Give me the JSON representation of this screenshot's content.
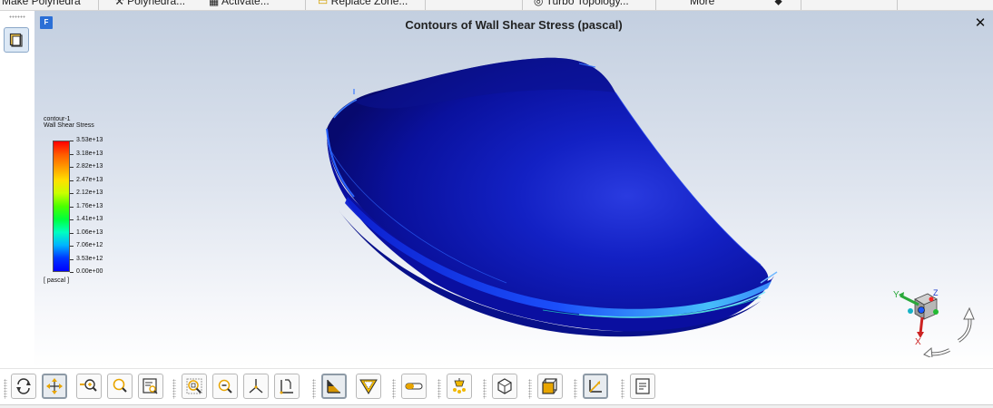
{
  "top_toolbar": {
    "items": [
      {
        "label": "Make Polyhedra",
        "icon": ""
      },
      {
        "label": "Polyhedra...",
        "icon": "wrench-icon"
      },
      {
        "label": "Activate...",
        "icon": "grid-icon"
      },
      {
        "label": "Replace Zone...",
        "icon": "folder-icon"
      },
      {
        "label": "Turbo Topology...",
        "icon": "turbo-icon"
      },
      {
        "label": "More",
        "icon": "dropdown-icon"
      }
    ]
  },
  "graphics_window": {
    "title": "Contours of Wall Shear Stress (pascal)",
    "badge": "F",
    "close_glyph": "✕"
  },
  "legend": {
    "contour_name": "contour-1",
    "variable": "Wall Shear Stress",
    "units": "[ pascal ]",
    "ticks": [
      "3.53e+13",
      "3.18e+13",
      "2.82e+13",
      "2.47e+13",
      "2.12e+13",
      "1.76e+13",
      "1.41e+13",
      "1.06e+13",
      "7.06e+12",
      "3.53e+12",
      "0.00e+00"
    ],
    "colormap": [
      "#ff0000",
      "#ffe000",
      "#4bff00",
      "#00ffc0",
      "#0000ff"
    ]
  },
  "triad": {
    "x": "X",
    "y": "Y",
    "z": "Z"
  },
  "bottom_toolbar": {
    "buttons": [
      {
        "id": "rotate",
        "icon": "rotate-icon",
        "active": false
      },
      {
        "id": "pan",
        "icon": "pan-icon",
        "active": true
      },
      {
        "id": "zoom-inout",
        "icon": "zoom-in-out-icon",
        "active": false
      },
      {
        "id": "zoom",
        "icon": "zoom-icon",
        "active": false
      },
      {
        "id": "zoom-box",
        "icon": "zoom-box-icon",
        "active": false
      },
      {
        "id": "fit",
        "icon": "fit-to-window-icon",
        "active": false
      },
      {
        "id": "zoom-out",
        "icon": "zoom-out-icon",
        "active": false
      },
      {
        "id": "axes",
        "icon": "axes-icon",
        "active": false
      },
      {
        "id": "view-orient",
        "icon": "view-orientation-icon",
        "active": false
      },
      {
        "id": "mesh-display",
        "icon": "mesh-display-icon",
        "active": true
      },
      {
        "id": "clip",
        "icon": "clip-icon",
        "active": false
      },
      {
        "id": "probe",
        "icon": "probe-icon",
        "active": false
      },
      {
        "id": "lighting",
        "icon": "lighting-icon",
        "active": false
      },
      {
        "id": "box-view",
        "icon": "box-view-icon",
        "active": false
      },
      {
        "id": "cube-view",
        "icon": "cube-view-icon",
        "active": false
      },
      {
        "id": "coord-axes",
        "icon": "coordinate-axes-icon",
        "active": true
      },
      {
        "id": "report",
        "icon": "report-icon",
        "active": false
      }
    ]
  },
  "colors": {
    "accent": "#2b6fd6",
    "surface": "#0a10a8"
  }
}
